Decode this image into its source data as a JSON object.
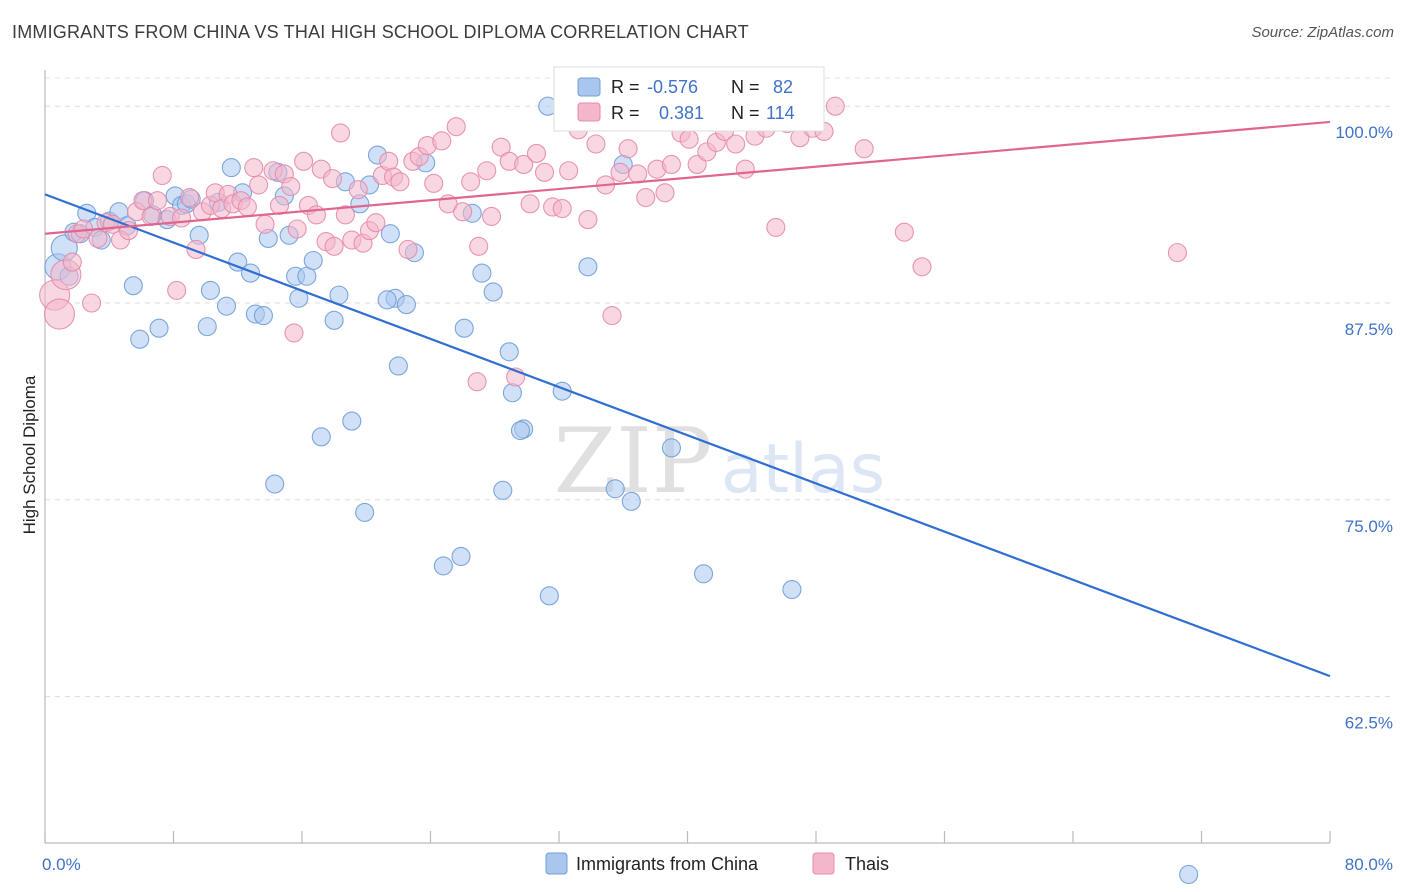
{
  "chart_data": {
    "type": "scatter",
    "title": "IMMIGRANTS FROM CHINA VS THAI HIGH SCHOOL DIPLOMA CORRELATION CHART",
    "source": "Source: ZipAtlas.com",
    "xlabel": "",
    "ylabel": "High School Diploma",
    "xlim": [
      0,
      80
    ],
    "ylim": [
      53.2,
      102.3
    ],
    "x_tick_labels": [
      "0.0%",
      "80.0%"
    ],
    "y_ticks": [
      62.5,
      75.0,
      87.5,
      100.0
    ],
    "y_tick_labels": [
      "62.5%",
      "75.0%",
      "87.5%",
      "100.0%"
    ],
    "grid": "dashed horizontal",
    "watermark": "ZIPatlas",
    "legend": {
      "position": "top-center",
      "rows": [
        {
          "r_label": "R =",
          "r_value": "-0.576",
          "n_label": "N =",
          "n_value": "82"
        },
        {
          "r_label": "R =",
          "r_value": "0.381",
          "n_label": "N =",
          "n_value": "114"
        }
      ]
    },
    "series": [
      {
        "name": "Immigrants from China",
        "color": "#a9c7ee",
        "edge": "#6e9fd8",
        "line_color": "#2f6fd1",
        "trend": {
          "x": [
            0,
            80
          ],
          "y": [
            94.4,
            63.8
          ]
        },
        "points": [
          [
            0.8,
            89.8
          ],
          [
            1.2,
            91.0
          ],
          [
            1.5,
            89.2
          ],
          [
            1.8,
            92.0
          ],
          [
            2.2,
            91.9
          ],
          [
            2.6,
            93.2
          ],
          [
            3.1,
            92.3
          ],
          [
            3.5,
            91.5
          ],
          [
            4.0,
            92.7
          ],
          [
            4.6,
            93.3
          ],
          [
            5.1,
            92.4
          ],
          [
            5.5,
            88.6
          ],
          [
            5.9,
            85.2
          ],
          [
            6.2,
            94.0
          ],
          [
            6.7,
            93.1
          ],
          [
            7.1,
            85.9
          ],
          [
            7.6,
            92.8
          ],
          [
            8.1,
            94.3
          ],
          [
            8.5,
            93.7
          ],
          [
            8.8,
            93.8
          ],
          [
            9.1,
            94.1
          ],
          [
            9.6,
            91.8
          ],
          [
            10.1,
            86.0
          ],
          [
            10.3,
            88.3
          ],
          [
            10.8,
            93.9
          ],
          [
            11.3,
            87.3
          ],
          [
            11.6,
            96.1
          ],
          [
            12.0,
            90.1
          ],
          [
            12.3,
            94.5
          ],
          [
            12.8,
            89.4
          ],
          [
            13.1,
            86.8
          ],
          [
            13.6,
            86.7
          ],
          [
            13.9,
            91.6
          ],
          [
            14.3,
            76.0
          ],
          [
            14.5,
            95.8
          ],
          [
            14.9,
            94.3
          ],
          [
            15.2,
            91.8
          ],
          [
            15.6,
            89.2
          ],
          [
            15.8,
            87.8
          ],
          [
            16.3,
            89.2
          ],
          [
            16.7,
            90.2
          ],
          [
            17.2,
            79.0
          ],
          [
            18.0,
            86.4
          ],
          [
            18.3,
            88.0
          ],
          [
            18.7,
            95.2
          ],
          [
            19.1,
            80.0
          ],
          [
            19.6,
            93.8
          ],
          [
            19.9,
            74.2
          ],
          [
            20.2,
            95.0
          ],
          [
            20.7,
            96.9
          ],
          [
            21.5,
            91.9
          ],
          [
            21.8,
            87.8
          ],
          [
            21.3,
            87.7
          ],
          [
            22.0,
            83.5
          ],
          [
            22.5,
            87.4
          ],
          [
            23.0,
            90.7
          ],
          [
            23.7,
            96.4
          ],
          [
            24.8,
            70.8
          ],
          [
            25.9,
            71.4
          ],
          [
            26.1,
            85.9
          ],
          [
            26.6,
            93.2
          ],
          [
            27.2,
            89.4
          ],
          [
            27.9,
            88.2
          ],
          [
            28.5,
            75.6
          ],
          [
            28.9,
            84.4
          ],
          [
            29.1,
            81.8
          ],
          [
            29.8,
            79.5
          ],
          [
            29.6,
            79.4
          ],
          [
            31.3,
            100.0
          ],
          [
            31.4,
            68.9
          ],
          [
            32.2,
            81.9
          ],
          [
            33.1,
            100.0
          ],
          [
            33.8,
            89.8
          ],
          [
            35.5,
            75.7
          ],
          [
            36.0,
            96.3
          ],
          [
            36.5,
            74.9
          ],
          [
            39.0,
            78.3
          ],
          [
            41.0,
            70.3
          ],
          [
            46.5,
            69.3
          ],
          [
            71.2,
            51.2
          ]
        ]
      },
      {
        "name": "Thais",
        "color": "#f4b6cb",
        "edge": "#e58aab",
        "line_color": "#e0668f",
        "trend": {
          "x": [
            0,
            80
          ],
          "y": [
            91.9,
            99.0
          ]
        },
        "points": [
          [
            0.6,
            88.0
          ],
          [
            0.9,
            86.8
          ],
          [
            1.3,
            89.3
          ],
          [
            1.7,
            90.1
          ],
          [
            2.0,
            91.9
          ],
          [
            2.4,
            92.2
          ],
          [
            2.9,
            87.5
          ],
          [
            3.3,
            91.6
          ],
          [
            3.8,
            92.6
          ],
          [
            4.2,
            92.5
          ],
          [
            4.7,
            91.5
          ],
          [
            5.2,
            92.1
          ],
          [
            5.7,
            93.3
          ],
          [
            6.1,
            94.0
          ],
          [
            6.6,
            93.0
          ],
          [
            7.0,
            94.0
          ],
          [
            7.3,
            95.6
          ],
          [
            7.8,
            93.0
          ],
          [
            8.2,
            88.3
          ],
          [
            8.5,
            92.9
          ],
          [
            9.0,
            94.2
          ],
          [
            9.4,
            90.9
          ],
          [
            9.8,
            93.3
          ],
          [
            10.3,
            93.7
          ],
          [
            10.6,
            94.5
          ],
          [
            11.0,
            93.5
          ],
          [
            11.4,
            94.4
          ],
          [
            11.7,
            93.8
          ],
          [
            12.2,
            94.0
          ],
          [
            12.6,
            93.6
          ],
          [
            13.0,
            96.1
          ],
          [
            13.3,
            95.0
          ],
          [
            13.7,
            92.5
          ],
          [
            14.2,
            95.9
          ],
          [
            14.6,
            93.7
          ],
          [
            14.9,
            95.7
          ],
          [
            15.3,
            94.9
          ],
          [
            15.7,
            92.2
          ],
          [
            16.1,
            96.5
          ],
          [
            16.4,
            93.7
          ],
          [
            16.9,
            93.1
          ],
          [
            17.2,
            96.0
          ],
          [
            17.5,
            91.4
          ],
          [
            17.9,
            95.4
          ],
          [
            18.4,
            98.3
          ],
          [
            18.7,
            93.1
          ],
          [
            19.1,
            91.5
          ],
          [
            19.5,
            94.7
          ],
          [
            19.8,
            91.3
          ],
          [
            20.2,
            92.1
          ],
          [
            20.6,
            92.6
          ],
          [
            21.0,
            95.6
          ],
          [
            21.4,
            96.5
          ],
          [
            21.7,
            95.5
          ],
          [
            22.1,
            95.2
          ],
          [
            22.6,
            90.9
          ],
          [
            22.9,
            96.5
          ],
          [
            23.3,
            96.8
          ],
          [
            23.8,
            97.5
          ],
          [
            24.2,
            95.1
          ],
          [
            24.7,
            97.8
          ],
          [
            25.1,
            93.8
          ],
          [
            25.6,
            98.7
          ],
          [
            26.0,
            93.3
          ],
          [
            26.5,
            95.2
          ],
          [
            27.0,
            91.1
          ],
          [
            27.5,
            95.9
          ],
          [
            27.8,
            93.0
          ],
          [
            28.4,
            97.4
          ],
          [
            28.9,
            96.5
          ],
          [
            29.3,
            82.8
          ],
          [
            29.8,
            96.3
          ],
          [
            30.2,
            93.8
          ],
          [
            30.6,
            97.0
          ],
          [
            31.1,
            95.8
          ],
          [
            31.6,
            93.6
          ],
          [
            32.2,
            93.5
          ],
          [
            32.6,
            95.9
          ],
          [
            33.2,
            98.5
          ],
          [
            33.8,
            92.8
          ],
          [
            34.3,
            97.6
          ],
          [
            34.9,
            95.0
          ],
          [
            35.3,
            86.7
          ],
          [
            35.8,
            95.8
          ],
          [
            36.3,
            97.3
          ],
          [
            36.9,
            95.7
          ],
          [
            37.4,
            94.2
          ],
          [
            38.1,
            96.0
          ],
          [
            38.6,
            94.5
          ],
          [
            39.0,
            96.3
          ],
          [
            39.6,
            98.3
          ],
          [
            40.1,
            97.9
          ],
          [
            40.6,
            96.3
          ],
          [
            41.2,
            97.1
          ],
          [
            41.8,
            97.7
          ],
          [
            42.3,
            98.4
          ],
          [
            43.0,
            97.6
          ],
          [
            43.6,
            96.0
          ],
          [
            44.2,
            98.1
          ],
          [
            44.9,
            98.6
          ],
          [
            45.5,
            92.3
          ],
          [
            46.2,
            98.9
          ],
          [
            47.0,
            98.0
          ],
          [
            47.8,
            98.6
          ],
          [
            48.5,
            98.4
          ],
          [
            49.2,
            100.0
          ],
          [
            51.0,
            97.3
          ],
          [
            53.5,
            92.0
          ],
          [
            54.6,
            89.8
          ],
          [
            70.5,
            90.7
          ],
          [
            18.0,
            91.1
          ],
          [
            26.9,
            82.5
          ],
          [
            15.5,
            85.6
          ]
        ]
      }
    ]
  }
}
